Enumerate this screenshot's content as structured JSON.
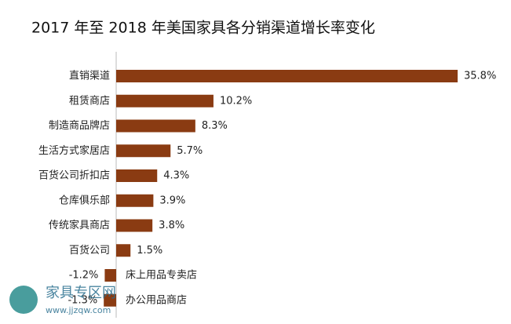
{
  "chart_data": {
    "type": "bar",
    "orientation": "horizontal",
    "title": "2017 年至 2018 年美国家具各分销渠道增长率变化",
    "categories": [
      "直销渠道",
      "租赁商店",
      "制造商品牌店",
      "生活方式家居店",
      "百货公司折扣店",
      "仓库俱乐部",
      "传统家具商店",
      "百货公司",
      "床上用品专卖店",
      "办公用品商店"
    ],
    "values": [
      35.8,
      10.2,
      8.3,
      5.7,
      4.3,
      3.9,
      3.8,
      1.5,
      -1.2,
      -1.3
    ],
    "value_labels": [
      "35.8%",
      "10.2%",
      "8.3%",
      "5.7%",
      "4.3%",
      "3.9%",
      "3.8%",
      "1.5%",
      "-1.2%",
      "-1.3%"
    ],
    "color": "#8a3b12"
  },
  "watermark": {
    "name": "家具专区网",
    "url": "www.jjzqw.com"
  }
}
